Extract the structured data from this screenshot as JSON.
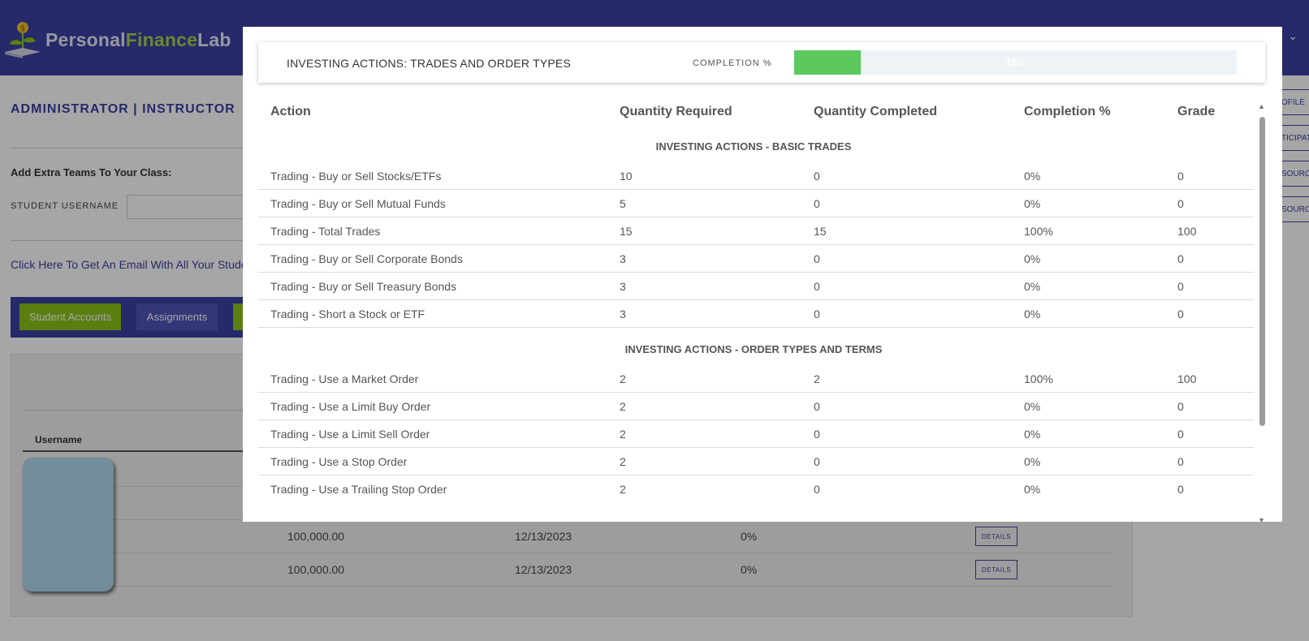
{
  "header": {
    "brand": {
      "part1": "Personal",
      "part2": "Finance",
      "part3": "Lab"
    },
    "user_menu_caret": "⌄"
  },
  "background": {
    "role_title": "ADMINISTRATOR | INSTRUCTOR",
    "extra_teams_label": "Add Extra Teams To Your Class:",
    "student_username_label": "STUDENT USERNAME",
    "student_username_value": "",
    "email_link": "Click Here To Get An Email With All Your Stude",
    "buttons": {
      "student_accounts": "Student Accounts",
      "assignments": "Assignments"
    },
    "right_tabs": [
      "OFILE",
      "TICIPAT",
      "SOURC",
      "SOURC"
    ],
    "table": {
      "username_header": "Username",
      "rows": [
        {
          "balance": "100,000.00",
          "date": "12/13/2023",
          "pct": "0%",
          "action": "DETAILS"
        },
        {
          "balance": "100,000.00",
          "date": "12/13/2023",
          "pct": "0%",
          "action": "DETAILS"
        }
      ]
    }
  },
  "modal": {
    "title": "INVESTING ACTIONS: TRADES AND ORDER TYPES",
    "completion_label": "COMPLETION %",
    "progress": {
      "percent": 15,
      "text": "15%"
    },
    "columns": [
      "Action",
      "Quantity Required",
      "Quantity Completed",
      "Completion %",
      "Grade"
    ],
    "sections": [
      {
        "name": "INVESTING ACTIONS - BASIC TRADES",
        "rows": [
          {
            "action": "Trading - Buy or Sell Stocks/ETFs",
            "required": "10",
            "completed": "0",
            "pct": "0%",
            "grade": "0"
          },
          {
            "action": "Trading - Buy or Sell Mutual Funds",
            "required": "5",
            "completed": "0",
            "pct": "0%",
            "grade": "0"
          },
          {
            "action": "Trading - Total Trades",
            "required": "15",
            "completed": "15",
            "pct": "100%",
            "grade": "100"
          },
          {
            "action": "Trading - Buy or Sell Corporate Bonds",
            "required": "3",
            "completed": "0",
            "pct": "0%",
            "grade": "0"
          },
          {
            "action": "Trading - Buy or Sell Treasury Bonds",
            "required": "3",
            "completed": "0",
            "pct": "0%",
            "grade": "0"
          },
          {
            "action": "Trading - Short a Stock or ETF",
            "required": "3",
            "completed": "0",
            "pct": "0%",
            "grade": "0"
          }
        ]
      },
      {
        "name": "INVESTING ACTIONS - ORDER TYPES AND TERMS",
        "rows": [
          {
            "action": "Trading - Use a Market Order",
            "required": "2",
            "completed": "2",
            "pct": "100%",
            "grade": "100"
          },
          {
            "action": "Trading - Use a Limit Buy Order",
            "required": "2",
            "completed": "0",
            "pct": "0%",
            "grade": "0"
          },
          {
            "action": "Trading - Use a Limit Sell Order",
            "required": "2",
            "completed": "0",
            "pct": "0%",
            "grade": "0"
          },
          {
            "action": "Trading - Use a Stop Order",
            "required": "2",
            "completed": "0",
            "pct": "0%",
            "grade": "0"
          },
          {
            "action": "Trading - Use a Trailing Stop Order",
            "required": "2",
            "completed": "0",
            "pct": "0%",
            "grade": "0"
          }
        ]
      }
    ],
    "colors": {
      "progress_fill": "#5cc95f",
      "progress_track": "#eef3f8"
    }
  }
}
